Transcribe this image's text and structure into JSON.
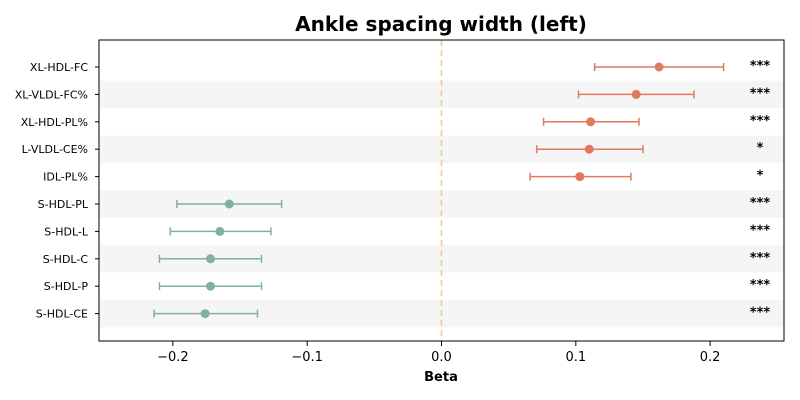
{
  "chart_data": {
    "type": "forest",
    "title": "Ankle spacing width (left)",
    "xlabel": "Beta",
    "xlim": [
      -0.255,
      0.255
    ],
    "xticks": [
      -0.2,
      -0.1,
      0.0,
      0.1,
      0.2
    ],
    "xtick_labels": [
      "−0.2",
      "−0.1",
      "0.0",
      "0.1",
      "0.2"
    ],
    "reference_line": 0.0,
    "categories": [
      "XL-HDL-FC",
      "XL-VLDL-FC%",
      "XL-HDL-PL%",
      "L-VLDL-CE%",
      "IDL-PL%",
      "S-HDL-PL",
      "S-HDL-L",
      "S-HDL-C",
      "S-HDL-P",
      "S-HDL-CE"
    ],
    "estimates": [
      0.162,
      0.145,
      0.111,
      0.11,
      0.103,
      -0.158,
      -0.165,
      -0.172,
      -0.172,
      -0.176
    ],
    "ci_lower": [
      0.114,
      0.102,
      0.076,
      0.071,
      0.066,
      -0.197,
      -0.202,
      -0.21,
      -0.21,
      -0.214
    ],
    "ci_upper": [
      0.21,
      0.188,
      0.147,
      0.15,
      0.141,
      -0.119,
      -0.127,
      -0.134,
      -0.134,
      -0.137
    ],
    "significance": [
      "***",
      "***",
      "***",
      "*",
      "*",
      "***",
      "***",
      "***",
      "***",
      "***"
    ],
    "colors": {
      "positive": "#e07a5f",
      "negative": "#81b29a",
      "reference": "#f2cc8f",
      "band": "#f5f5f5"
    }
  }
}
